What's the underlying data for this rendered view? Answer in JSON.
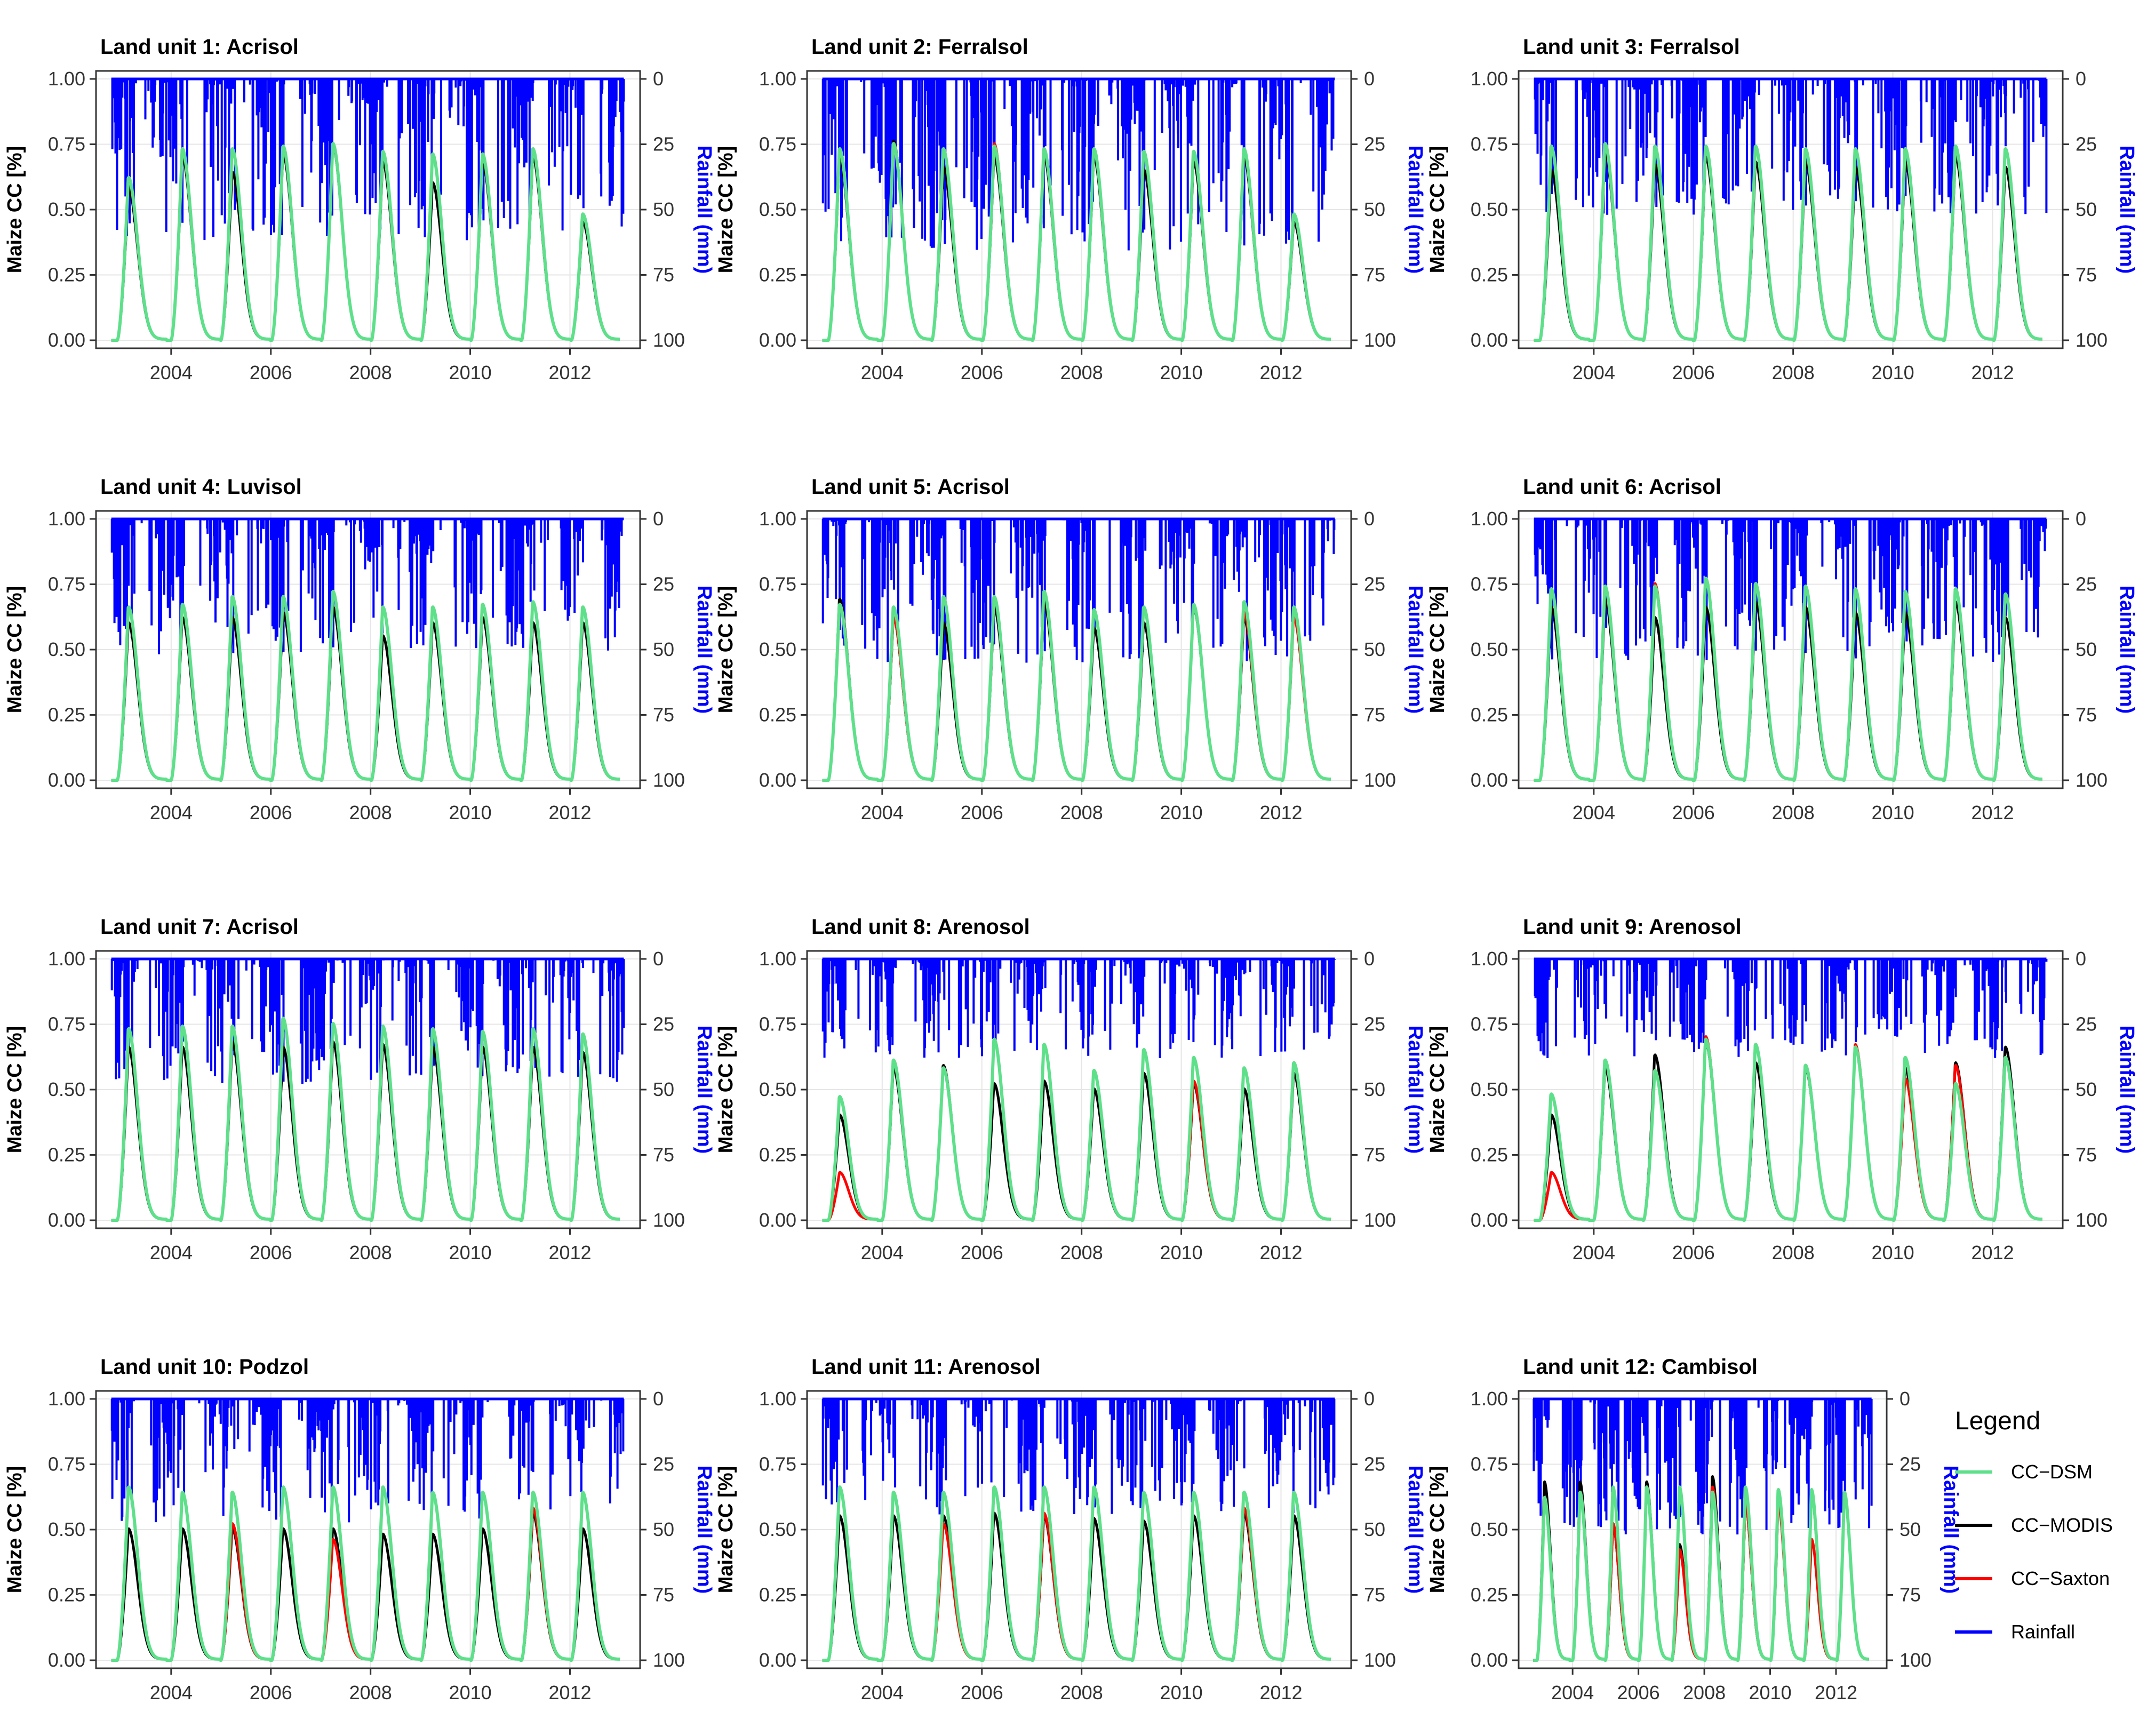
{
  "chart_data": {
    "type": "line",
    "shared": {
      "ylabel": "Maize CC [%]",
      "y2label": "Rainfall (mm)",
      "ylim": [
        0,
        1
      ],
      "y2lim": [
        0,
        100
      ],
      "y2_reversed": true,
      "xlim": [
        2002.75,
        2013.15
      ],
      "yticks": [
        0,
        0.25,
        0.5,
        0.75,
        1
      ],
      "ytick_labels": [
        "0.00",
        "0.25",
        "0.50",
        "0.75",
        "1.00"
      ],
      "y2ticks": [
        0,
        25,
        50,
        75,
        100
      ],
      "y2tick_labels": [
        "0",
        "25",
        "50",
        "75",
        "100"
      ],
      "xticks": [
        2004,
        2006,
        2008,
        2010,
        2012
      ],
      "xtick_labels": [
        "2004",
        "2006",
        "2008",
        "2010",
        "2012"
      ],
      "grid": true,
      "colors": {
        "dsm": "#5ee08a",
        "modis": "#000000",
        "saxton": "#ff0000",
        "rainfall": "#0000ff",
        "frame": "#333333",
        "grid": "#e6e6e6"
      }
    },
    "legend": {
      "title": "Legend",
      "placement": "right",
      "items": [
        {
          "label": "CC−DSM",
          "color": "#5ee08a"
        },
        {
          "label": "CC−MODIS",
          "color": "#000000"
        },
        {
          "label": "CC−Saxton",
          "color": "#ff0000"
        },
        {
          "label": "Rainfall",
          "color": "#0000ff"
        }
      ]
    },
    "panels": [
      {
        "title": "Land unit 1: Acrisol",
        "dsm_peaks": [
          0.62,
          0.73,
          0.73,
          0.74,
          0.75,
          0.72,
          0.71,
          0.71,
          0.73,
          0.48
        ],
        "modis_peaks": [
          0.58,
          0.7,
          0.64,
          0.71,
          0.74,
          0.68,
          0.6,
          0.68,
          0.7,
          0.45
        ],
        "saxton_peaks": [
          0.62,
          0.73,
          0.73,
          0.74,
          0.75,
          0.72,
          0.71,
          0.71,
          0.73,
          0.48
        ],
        "rain_max": 62
      },
      {
        "title": "Land unit 2: Ferralsol",
        "dsm_peaks": [
          0.73,
          0.75,
          0.73,
          0.74,
          0.73,
          0.73,
          0.72,
          0.72,
          0.73,
          0.48
        ],
        "modis_peaks": [
          0.7,
          0.76,
          0.66,
          0.7,
          0.7,
          0.7,
          0.65,
          0.68,
          0.7,
          0.45
        ],
        "saxton_peaks": [
          0.73,
          0.75,
          0.73,
          0.75,
          0.73,
          0.73,
          0.72,
          0.72,
          0.73,
          0.48
        ],
        "rain_max": 66
      },
      {
        "title": "Land unit 3: Ferralsol",
        "dsm_peaks": [
          0.74,
          0.75,
          0.74,
          0.74,
          0.74,
          0.73,
          0.73,
          0.73,
          0.74,
          0.73
        ],
        "modis_peaks": [
          0.65,
          0.72,
          0.67,
          0.7,
          0.68,
          0.68,
          0.66,
          0.68,
          0.7,
          0.66
        ],
        "saxton_peaks": [
          0.74,
          0.75,
          0.74,
          0.74,
          0.74,
          0.73,
          0.73,
          0.73,
          0.74,
          0.73
        ],
        "rain_max": 52
      },
      {
        "title": "Land unit 4: Luvisol",
        "dsm_peaks": [
          0.66,
          0.67,
          0.7,
          0.7,
          0.72,
          0.66,
          0.66,
          0.67,
          0.68,
          0.66
        ],
        "modis_peaks": [
          0.6,
          0.62,
          0.62,
          0.64,
          0.66,
          0.55,
          0.6,
          0.62,
          0.6,
          0.6
        ],
        "saxton_peaks": [
          0.66,
          0.67,
          0.7,
          0.7,
          0.72,
          0.66,
          0.66,
          0.67,
          0.68,
          0.66
        ],
        "rain_max": 52
      },
      {
        "title": "Land unit 5: Acrisol",
        "dsm_peaks": [
          0.67,
          0.66,
          0.7,
          0.7,
          0.72,
          0.65,
          0.66,
          0.67,
          0.68,
          0.66
        ],
        "modis_peaks": [
          0.69,
          0.62,
          0.6,
          0.66,
          0.68,
          0.58,
          0.6,
          0.66,
          0.62,
          0.66
        ],
        "saxton_peaks": [
          0.67,
          0.62,
          0.7,
          0.7,
          0.72,
          0.65,
          0.66,
          0.67,
          0.64,
          0.62
        ],
        "rain_max": 55
      },
      {
        "title": "Land unit 6: Acrisol",
        "dsm_peaks": [
          0.73,
          0.74,
          0.74,
          0.77,
          0.75,
          0.74,
          0.73,
          0.72,
          0.73,
          0.71
        ],
        "modis_peaks": [
          0.66,
          0.69,
          0.62,
          0.66,
          0.68,
          0.66,
          0.64,
          0.64,
          0.68,
          0.62
        ],
        "saxton_peaks": [
          0.73,
          0.74,
          0.75,
          0.77,
          0.75,
          0.74,
          0.73,
          0.72,
          0.73,
          0.71
        ],
        "rain_max": 55
      },
      {
        "title": "Land unit 7: Acrisol",
        "dsm_peaks": [
          0.73,
          0.74,
          0.74,
          0.77,
          0.75,
          0.74,
          0.73,
          0.72,
          0.73,
          0.71
        ],
        "modis_peaks": [
          0.66,
          0.66,
          0.68,
          0.66,
          0.68,
          0.67,
          0.66,
          0.66,
          0.66,
          0.64
        ],
        "saxton_peaks": [
          0.73,
          0.74,
          0.74,
          0.77,
          0.75,
          0.74,
          0.73,
          0.72,
          0.73,
          0.71
        ],
        "rain_max": 48
      },
      {
        "title": "Land unit 8: Arenosol",
        "dsm_peaks": [
          0.47,
          0.61,
          0.58,
          0.69,
          0.67,
          0.57,
          0.65,
          0.62,
          0.58,
          0.6
        ],
        "modis_peaks": [
          0.4,
          0.58,
          0.59,
          0.52,
          0.53,
          0.5,
          0.56,
          0.52,
          0.5,
          0.56
        ],
        "saxton_peaks": [
          0.18,
          0.61,
          0.58,
          0.69,
          0.67,
          0.57,
          0.65,
          0.53,
          0.58,
          0.6
        ],
        "rain_max": 38
      },
      {
        "title": "Land unit 9: Arenosol",
        "dsm_peaks": [
          0.48,
          0.61,
          0.57,
          0.69,
          0.67,
          0.59,
          0.66,
          0.62,
          0.52,
          0.62
        ],
        "modis_peaks": [
          0.4,
          0.58,
          0.63,
          0.68,
          0.6,
          0.58,
          0.66,
          0.58,
          0.6,
          0.66
        ],
        "saxton_peaks": [
          0.18,
          0.61,
          0.57,
          0.7,
          0.67,
          0.59,
          0.67,
          0.54,
          0.59,
          0.62
        ],
        "rain_max": 38
      },
      {
        "title": "Land unit 10: Podzol",
        "dsm_peaks": [
          0.66,
          0.64,
          0.64,
          0.66,
          0.66,
          0.66,
          0.64,
          0.64,
          0.64,
          0.64
        ],
        "modis_peaks": [
          0.5,
          0.5,
          0.5,
          0.5,
          0.5,
          0.48,
          0.48,
          0.5,
          0.56,
          0.5
        ],
        "saxton_peaks": [
          0.66,
          0.64,
          0.52,
          0.66,
          0.46,
          0.66,
          0.64,
          0.64,
          0.58,
          0.64
        ],
        "rain_max": 48
      },
      {
        "title": "Land unit 11: Arenosol",
        "dsm_peaks": [
          0.66,
          0.64,
          0.64,
          0.66,
          0.66,
          0.66,
          0.64,
          0.64,
          0.64,
          0.64
        ],
        "modis_peaks": [
          0.55,
          0.55,
          0.55,
          0.56,
          0.55,
          0.54,
          0.53,
          0.55,
          0.56,
          0.55
        ],
        "saxton_peaks": [
          0.66,
          0.64,
          0.52,
          0.66,
          0.56,
          0.66,
          0.64,
          0.64,
          0.58,
          0.64
        ],
        "rain_max": 45
      },
      {
        "title": "Land unit 12: Cambisol",
        "dsm_peaks": [
          0.62,
          0.64,
          0.66,
          0.66,
          0.66,
          0.64,
          0.66,
          0.65,
          0.65,
          0.64
        ],
        "modis_peaks": [
          0.68,
          0.68,
          0.52,
          0.68,
          0.44,
          0.7,
          0.6,
          0.62,
          0.64,
          0.64
        ],
        "saxton_peaks": [
          0.62,
          0.64,
          0.52,
          0.66,
          0.42,
          0.66,
          0.6,
          0.6,
          0.46,
          0.64
        ],
        "rain_max": 52
      }
    ]
  }
}
